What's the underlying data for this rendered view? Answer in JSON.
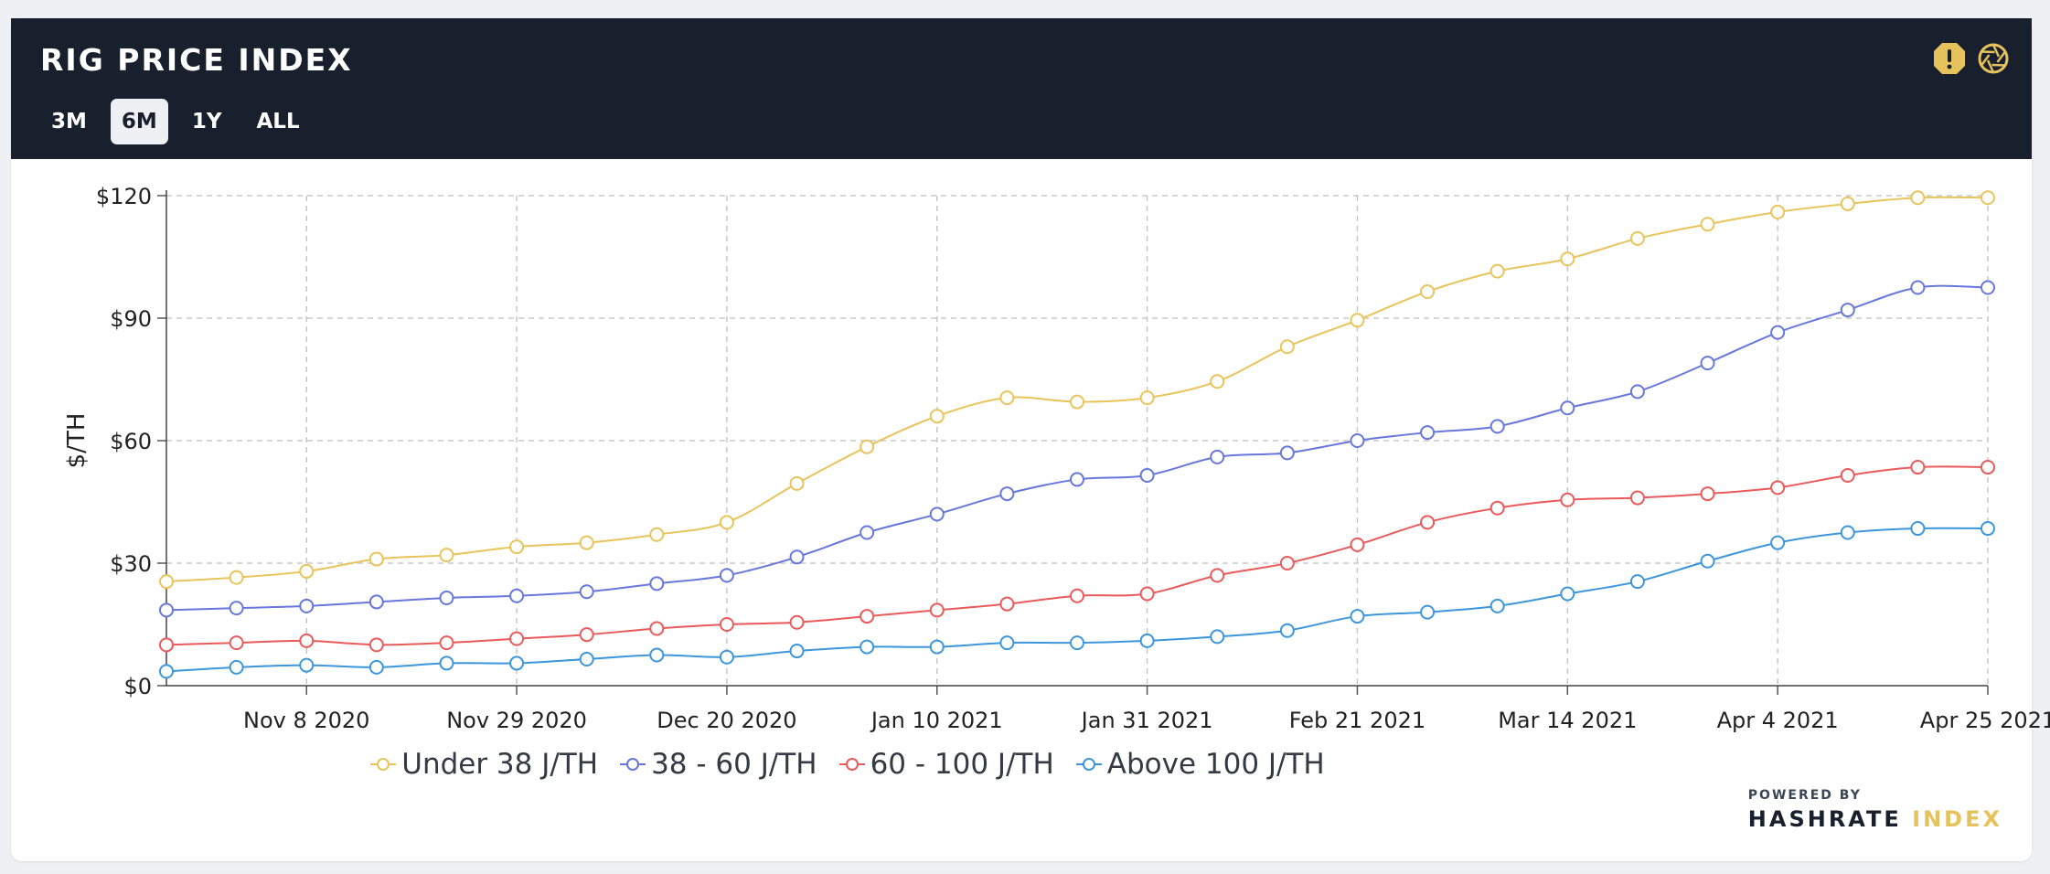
{
  "header": {
    "title": "RIG PRICE INDEX",
    "tabs": [
      {
        "label": "3M",
        "active": false
      },
      {
        "label": "6M",
        "active": true
      },
      {
        "label": "1Y",
        "active": false
      },
      {
        "label": "ALL",
        "active": false
      }
    ],
    "icons": [
      "alert-icon",
      "camera-shutter-icon"
    ],
    "alert_color": "#e5c25b"
  },
  "brand": {
    "small": "POWERED BY",
    "big_part1": "HASHRATE",
    "big_part2": "INDEX",
    "accent": "#e5c25b"
  },
  "chart_data": {
    "type": "line",
    "title": "",
    "xlabel": "",
    "ylabel": "$/TH",
    "ylim": [
      0,
      120
    ],
    "yticks": [
      "$0",
      "$30",
      "$60",
      "$90",
      "$120"
    ],
    "grid": true,
    "legend_position": "bottom",
    "x": [
      "2020-10-25",
      "2020-11-01",
      "2020-11-08",
      "2020-11-15",
      "2020-11-22",
      "2020-11-29",
      "2020-12-06",
      "2020-12-13",
      "2020-12-20",
      "2020-12-27",
      "2021-01-03",
      "2021-01-10",
      "2021-01-17",
      "2021-01-24",
      "2021-01-31",
      "2021-02-07",
      "2021-02-14",
      "2021-02-21",
      "2021-02-28",
      "2021-03-07",
      "2021-03-14",
      "2021-03-21",
      "2021-03-28",
      "2021-04-04",
      "2021-04-11",
      "2021-04-18",
      "2021-04-25"
    ],
    "xtick_labels": [
      "Nov 8 2020",
      "Nov 29 2020",
      "Dec 20 2020",
      "Jan 10 2021",
      "Jan 31 2021",
      "Feb 21 2021",
      "Mar 14 2021",
      "Apr 4 2021",
      "Apr 25 2021"
    ],
    "series": [
      {
        "name": "Under 38 J/TH",
        "color": "#e8c45a",
        "values": [
          25.5,
          26.5,
          28,
          31,
          32,
          34,
          35,
          37,
          40,
          49.5,
          58.5,
          66,
          70.5,
          69.5,
          70.5,
          74.5,
          83,
          89.5,
          96.5,
          101.5,
          104.5,
          109.5,
          113,
          116,
          118,
          119.5,
          119.5
        ]
      },
      {
        "name": "38 - 60 J/TH",
        "color": "#6777dc",
        "values": [
          18.5,
          19,
          19.5,
          20.5,
          21.5,
          22,
          23,
          25,
          27,
          31.5,
          37.5,
          42,
          47,
          50.5,
          51.5,
          56,
          57,
          60,
          62,
          63.5,
          68,
          72,
          79,
          86.5,
          92,
          97.5,
          97.5
        ]
      },
      {
        "name": "60 - 100 J/TH",
        "color": "#ea5a5a",
        "values": [
          10,
          10.5,
          11,
          10,
          10.5,
          11.5,
          12.5,
          14,
          15,
          15.5,
          17,
          18.5,
          20,
          22,
          22.5,
          27,
          30,
          34.5,
          40,
          43.5,
          45.5,
          46,
          47,
          48.5,
          51.5,
          53.5,
          53.5
        ]
      },
      {
        "name": "Above 100 J/TH",
        "color": "#3d96dc",
        "values": [
          3.5,
          4.5,
          5,
          4.5,
          5.5,
          5.5,
          6.5,
          7.5,
          7,
          8.5,
          9.5,
          9.5,
          10.5,
          10.5,
          11,
          12,
          13.5,
          17,
          18,
          19.5,
          22.5,
          25.5,
          30.5,
          35,
          37.5,
          38.5,
          38.5
        ]
      }
    ]
  }
}
